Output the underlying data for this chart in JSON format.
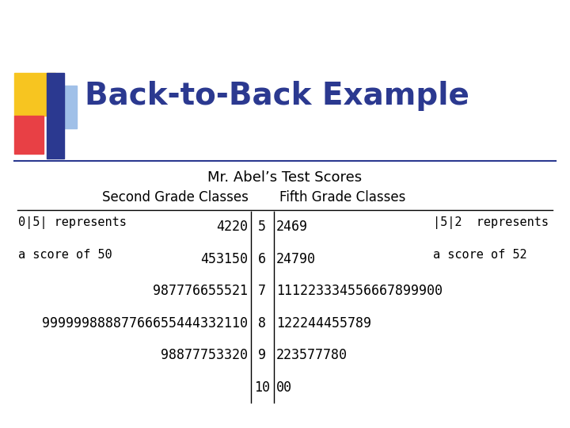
{
  "title": "Back-to-Back Example",
  "subtitle": "Mr. Abel’s Test Scores",
  "left_header": "Second Grade Classes",
  "right_header": "Fifth Grade Classes",
  "stems": [
    "5",
    "6",
    "7",
    "8",
    "9",
    "10"
  ],
  "left_leaves": [
    "4220",
    "453150",
    "987776655521",
    "99999988887766655444332110",
    "98877753320",
    ""
  ],
  "right_leaves": [
    "2469",
    "24790",
    "111223334556667899900",
    "122244455789",
    "223577780",
    "00"
  ],
  "left_key_line1": "0|5| represents",
  "left_key_line2": "a score of 50",
  "right_key_line1": "|5|2  represents",
  "right_key_line2": "a score of 52",
  "title_color": "#2B3990",
  "bg_color": "#FFFFFF",
  "title_fontsize": 28,
  "subtitle_fontsize": 13,
  "header_fontsize": 12,
  "data_fontsize": 12,
  "key_fontsize": 11,
  "dec_yellow": "#F7C520",
  "dec_red": "#E84045",
  "dec_blue": "#2B3990",
  "dec_lblue": "#A0C0E8"
}
